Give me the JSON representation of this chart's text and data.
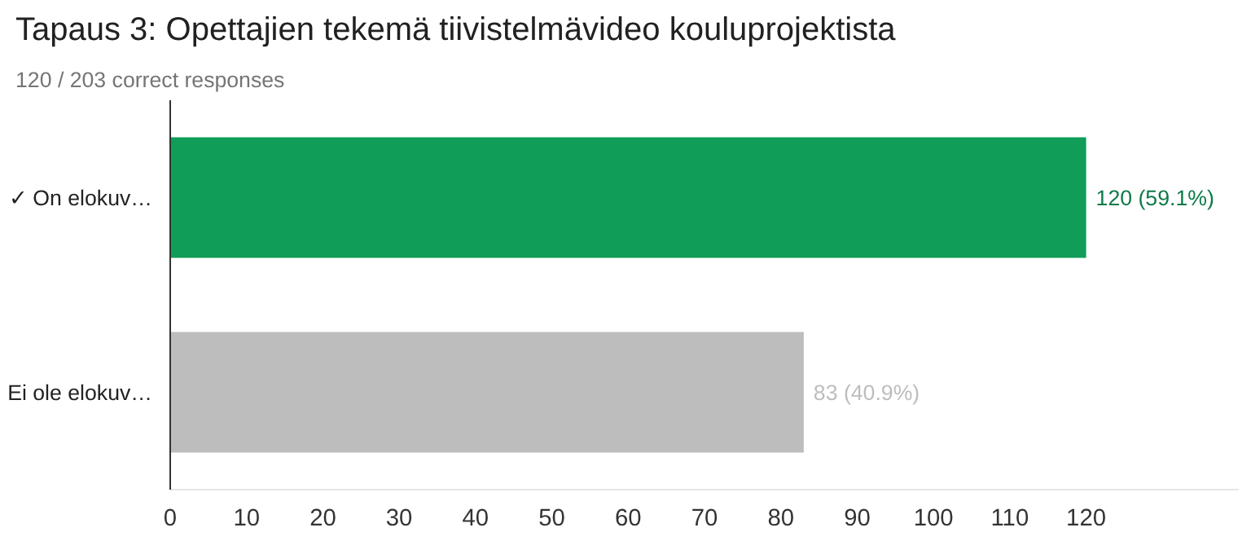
{
  "chart_data": {
    "type": "bar",
    "orientation": "horizontal",
    "title": "Tapaus 3: Opettajien tekemä tiivistelmävideo kouluprojektista",
    "subtitle": "120 / 203 correct responses",
    "categories": [
      "✓ On elokuv…",
      "Ei ole elokuv…"
    ],
    "values": [
      120,
      83
    ],
    "colors": [
      "#0f9d58",
      "#bdbdbd"
    ],
    "value_labels": [
      "120 (59.1%)",
      "83 (40.9%)"
    ],
    "xlim": [
      0,
      140
    ],
    "xticks": [
      0,
      10,
      20,
      30,
      40,
      50,
      60,
      70,
      80,
      90,
      100,
      110,
      120
    ],
    "grid": false
  }
}
